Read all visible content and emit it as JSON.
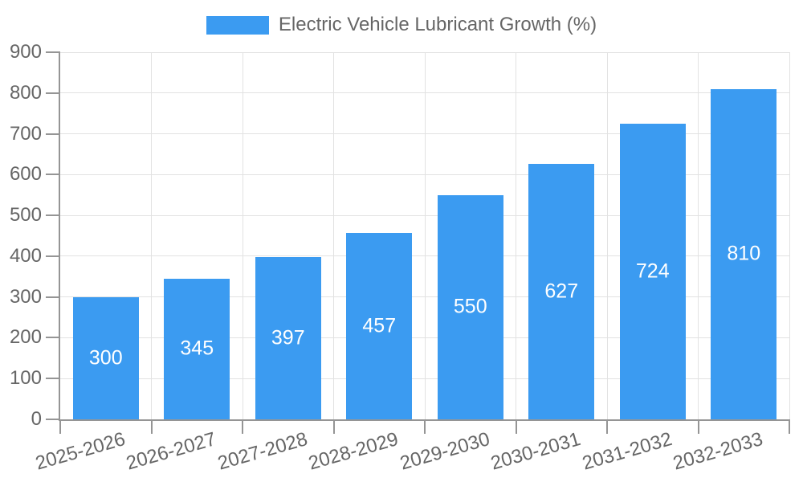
{
  "chart_data": {
    "type": "bar",
    "title": "Electric Vehicle Lubricant Growth (%)",
    "legend_position": "top",
    "categories": [
      "2025-2026",
      "2026-2027",
      "2027-2028",
      "2028-2029",
      "2029-2030",
      "2030-2031",
      "2031-2032",
      "2032-2033"
    ],
    "series": [
      {
        "name": "Electric Vehicle Lubricant Growth (%)",
        "values": [
          300,
          345,
          397,
          457,
          550,
          627,
          724,
          810
        ]
      }
    ],
    "yticks": [
      0,
      100,
      200,
      300,
      400,
      500,
      600,
      700,
      800,
      900
    ],
    "ylim": [
      0,
      900
    ],
    "grid": true,
    "value_labels": "inside-center",
    "colors": {
      "bar": "#3b9bf1",
      "text": "#666666",
      "grid": "#e2e2e2",
      "axis": "#959595",
      "value_label": "#ffffff",
      "background": "#ffffff"
    }
  }
}
